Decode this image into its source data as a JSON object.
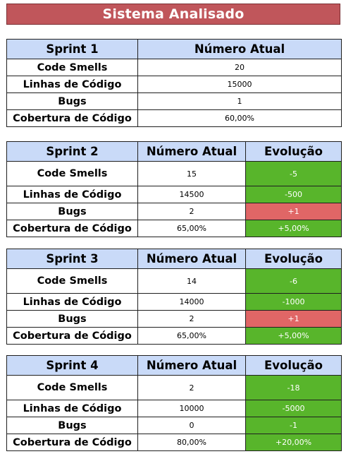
{
  "title": "Sistema Analisado",
  "headers": {
    "current": "Número Atual",
    "evolution": "Evolução"
  },
  "metrics": {
    "code_smells": "Code Smells",
    "lines": "Linhas de Código",
    "bugs": "Bugs",
    "coverage": "Cobertura de Código"
  },
  "sprints": [
    {
      "name": "Sprint 1",
      "values": {
        "code_smells": "20",
        "lines": "15000",
        "bugs": "1",
        "coverage": "60,00%"
      }
    },
    {
      "name": "Sprint 2",
      "values": {
        "code_smells": "15",
        "lines": "14500",
        "bugs": "2",
        "coverage": "65,00%"
      },
      "evolution": {
        "code_smells": "-5",
        "lines": "-500",
        "bugs": "+1",
        "coverage": "+5,00%"
      }
    },
    {
      "name": "Sprint 3",
      "values": {
        "code_smells": "14",
        "lines": "14000",
        "bugs": "2",
        "coverage": "65,00%"
      },
      "evolution": {
        "code_smells": "-6",
        "lines": "-1000",
        "bugs": "+1",
        "coverage": "+5,00%"
      }
    },
    {
      "name": "Sprint 4",
      "values": {
        "code_smells": "2",
        "lines": "10000",
        "bugs": "0",
        "coverage": "80,00%"
      },
      "evolution": {
        "code_smells": "-18",
        "lines": "-5000",
        "bugs": "-1",
        "coverage": "+20,00%"
      }
    }
  ],
  "colors": {
    "title_background": "#c0565b",
    "header_background": "#c9daf8",
    "improvement": "#58b52b",
    "regression": "#e06666"
  }
}
